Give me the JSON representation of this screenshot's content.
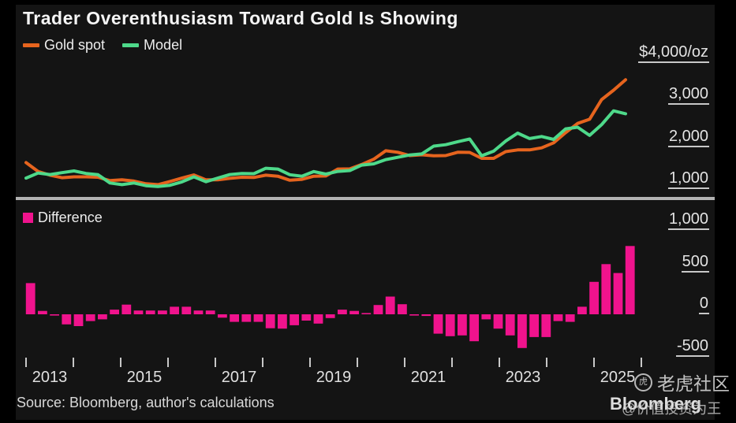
{
  "title": "Trader Overenthusiasm Toward Gold Is Showing",
  "source": "Source: Bloomberg, author's calculations",
  "branding": {
    "bloomberg": "Bloomberg",
    "community_watermark": "老虎社区",
    "investor_watermark": "@价值投资为王",
    "tiger_logo_glyph": "虎"
  },
  "colors": {
    "gold_spot": "#E6641E",
    "model": "#4ED98A",
    "difference": "#F0138D",
    "axis_text": "#E3E3E3",
    "tick_line": "#C8C8C8",
    "separator": "#B3B3B3",
    "panel_background": "#141414",
    "frame_background": "#000000"
  },
  "x_axis": {
    "labels": [
      "2013",
      "2015",
      "2017",
      "2019",
      "2021",
      "2023",
      "2025"
    ],
    "tick_count": 14,
    "frequency": "quarterly"
  },
  "chart_data": [
    {
      "type": "line",
      "panel": "top",
      "unit_label": "$4,000/oz",
      "y_axis_labels": [
        "$4,000/oz",
        "3,000",
        "2,000",
        "1,000"
      ],
      "y_ticks": [
        4000,
        3000,
        2000,
        1000
      ],
      "x_start": "2013-Q1",
      "x_step": "quarter",
      "legend": [
        {
          "label": "Gold spot",
          "color": "#E6641E"
        },
        {
          "label": "Model",
          "color": "#4ED98A"
        }
      ],
      "series": [
        {
          "name": "Gold spot",
          "values": [
            1630,
            1420,
            1330,
            1270,
            1290,
            1290,
            1280,
            1200,
            1220,
            1190,
            1125,
            1105,
            1180,
            1260,
            1335,
            1220,
            1220,
            1255,
            1280,
            1275,
            1330,
            1305,
            1210,
            1230,
            1305,
            1310,
            1475,
            1480,
            1585,
            1710,
            1910,
            1875,
            1795,
            1815,
            1790,
            1795,
            1875,
            1870,
            1730,
            1730,
            1890,
            1930,
            1930,
            1980,
            2100,
            2340,
            2560,
            2660,
            3125,
            3350,
            3600
          ]
        },
        {
          "name": "Model",
          "values": [
            1260,
            1380,
            1345,
            1390,
            1430,
            1370,
            1340,
            1145,
            1105,
            1145,
            1080,
            1060,
            1090,
            1170,
            1290,
            1175,
            1260,
            1345,
            1370,
            1365,
            1495,
            1475,
            1340,
            1305,
            1415,
            1355,
            1420,
            1440,
            1570,
            1600,
            1700,
            1755,
            1810,
            1835,
            2020,
            2055,
            2125,
            2190,
            1790,
            1900,
            2140,
            2330,
            2200,
            2250,
            2180,
            2430,
            2470,
            2275,
            2530,
            2860,
            2790
          ]
        }
      ]
    },
    {
      "type": "bar",
      "panel": "bottom",
      "legend": [
        {
          "label": "Difference",
          "color": "#F0138D"
        }
      ],
      "y_axis_labels": [
        "1,000",
        "500",
        "0",
        "-500"
      ],
      "y_ticks": [
        1000,
        500,
        0,
        -500
      ],
      "x_start": "2013-Q1",
      "x_step": "quarter",
      "values": [
        370,
        40,
        -15,
        -120,
        -140,
        -80,
        -60,
        55,
        115,
        45,
        45,
        45,
        90,
        90,
        45,
        45,
        -40,
        -90,
        -90,
        -90,
        -165,
        -170,
        -130,
        -75,
        -110,
        -45,
        55,
        40,
        15,
        110,
        210,
        120,
        -15,
        -20,
        -230,
        -260,
        -250,
        -320,
        -60,
        -170,
        -250,
        -400,
        -270,
        -270,
        -80,
        -90,
        90,
        385,
        595,
        490,
        810
      ]
    }
  ]
}
